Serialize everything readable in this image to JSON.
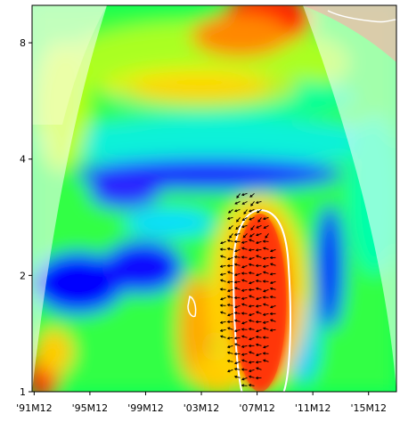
{
  "chart_data": {
    "type": "heatmap",
    "title": "",
    "xlabel": "",
    "ylabel": "",
    "x_axis": {
      "ticks": [
        1992.0,
        1996.0,
        2000.0,
        2004.0,
        2008.0,
        2012.0,
        2016.0
      ],
      "tick_labels": [
        "'91M12",
        "'95M12",
        "'99M12",
        "'03M12",
        "'07M12",
        "'11M12",
        "'15M12"
      ],
      "range": [
        1991.85,
        2018.0
      ]
    },
    "y_axis": {
      "scale": "log2",
      "ticks": [
        1,
        2,
        4,
        8
      ],
      "tick_labels": [
        "1",
        "2",
        "4",
        "8"
      ],
      "range": [
        1,
        10
      ],
      "label_position": "left"
    },
    "colormap": [
      "#0000ff",
      "#00ffff",
      "#00ff00",
      "#ffff00",
      "#ff8000",
      "#ff0000"
    ],
    "cone_of_influence": true,
    "significance_contour_color": "#ffffff",
    "phase_arrows": {
      "color": "#000000",
      "region": {
        "x": [
          2005.5,
          2009.5
        ],
        "period": [
          1.0,
          3.4
        ]
      },
      "direction": "mostly-left"
    },
    "regions": [
      {
        "name": "high-coherence-ellipse",
        "x": [
          2005.5,
          2009.5
        ],
        "period": [
          1.0,
          3.4
        ],
        "level": "high"
      },
      {
        "name": "top-high-band",
        "x": [
          2006,
          2012
        ],
        "period": [
          7,
          10
        ],
        "level": "high"
      },
      {
        "name": "mid-orange-band",
        "x": [
          1999,
          2009
        ],
        "period": [
          5.2,
          6.5
        ],
        "level": "medium-high"
      },
      {
        "name": "blue-band",
        "x": [
          1997,
          2011
        ],
        "period": [
          3.2,
          4.6
        ],
        "level": "low"
      },
      {
        "name": "left-blue-low",
        "x": [
          1992,
          2000
        ],
        "period": [
          1.6,
          2.6
        ],
        "level": "low"
      },
      {
        "name": "lower-left-red",
        "x": [
          1992,
          1993
        ],
        "period": [
          1.0,
          1.3
        ],
        "level": "high"
      },
      {
        "name": "small-significant-patch",
        "x": [
          2002.5,
          2003
        ],
        "period": [
          1.6,
          1.8
        ],
        "level": "significant"
      }
    ],
    "grid": false,
    "legend": "none"
  }
}
